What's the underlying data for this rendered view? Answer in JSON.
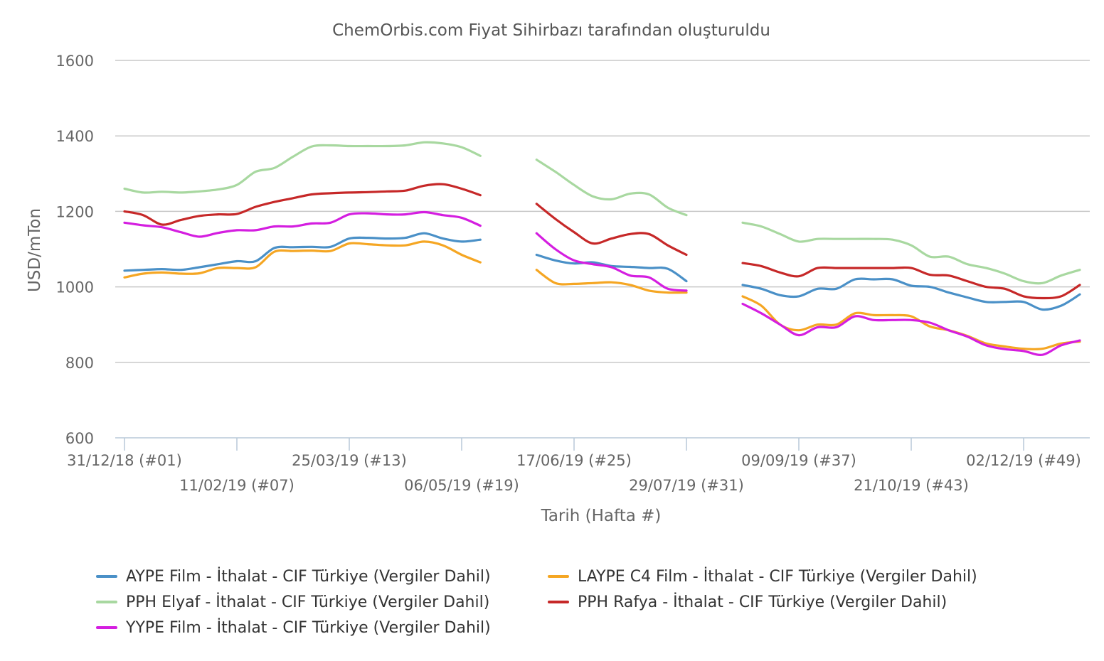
{
  "chart_data": {
    "type": "line",
    "title": "ChemOrbis.com Fiyat Sihirbazı tarafından oluşturuldu",
    "xlabel": "Tarih (Hafta #)",
    "ylabel": "USD/mTon",
    "ylim": [
      600,
      1600
    ],
    "yticks": [
      600,
      800,
      1000,
      1200,
      1400,
      1600
    ],
    "grid": true,
    "legend_position": "bottom",
    "x_week_range": [
      1,
      52
    ],
    "x_tick_labels": [
      {
        "week": 1,
        "label": "31/12/18 (#01)",
        "row": 1
      },
      {
        "week": 7,
        "label": "11/02/19 (#07)",
        "row": 2
      },
      {
        "week": 13,
        "label": "25/03/19 (#13)",
        "row": 1
      },
      {
        "week": 19,
        "label": "06/05/19 (#19)",
        "row": 2
      },
      {
        "week": 25,
        "label": "17/06/19 (#25)",
        "row": 1
      },
      {
        "week": 31,
        "label": "29/07/19 (#31)",
        "row": 2
      },
      {
        "week": 37,
        "label": "09/09/19 (#37)",
        "row": 1
      },
      {
        "week": 43,
        "label": "21/10/19 (#43)",
        "row": 2
      },
      {
        "week": 49,
        "label": "02/12/19 (#49)",
        "row": 1
      }
    ],
    "series": [
      {
        "name": "AYPE Film - İthalat - CIF Türkiye (Vergiler Dahil)",
        "color": "#4a90c7",
        "values": [
          1043,
          1045,
          1047,
          1045,
          1052,
          1060,
          1068,
          1068,
          1103,
          1105,
          1106,
          1106,
          1128,
          1130,
          1128,
          1130,
          1142,
          1128,
          1120,
          1125,
          null,
          null,
          1085,
          1070,
          1062,
          1065,
          1055,
          1053,
          1050,
          1048,
          1015,
          null,
          null,
          1005,
          995,
          978,
          975,
          995,
          995,
          1020,
          1020,
          1020,
          1003,
          1000,
          985,
          972,
          960,
          960,
          960,
          940,
          950,
          980
        ]
      },
      {
        "name": "LAYPE C4 Film - İthalat - CIF Türkiye (Vergiler Dahil)",
        "color": "#f5a623",
        "values": [
          1025,
          1035,
          1038,
          1035,
          1036,
          1050,
          1050,
          1052,
          1093,
          1095,
          1096,
          1095,
          1115,
          1113,
          1110,
          1110,
          1120,
          1110,
          1085,
          1065,
          null,
          null,
          1045,
          1010,
          1008,
          1010,
          1012,
          1005,
          990,
          985,
          985,
          null,
          null,
          975,
          950,
          900,
          885,
          900,
          900,
          930,
          925,
          925,
          922,
          895,
          885,
          870,
          850,
          842,
          836,
          836,
          850,
          855
        ]
      },
      {
        "name": "PPH Elyaf - İthalat - CIF Türkiye (Vergiler Dahil)",
        "color": "#a8d8a0",
        "values": [
          1260,
          1250,
          1252,
          1250,
          1253,
          1258,
          1270,
          1305,
          1315,
          1345,
          1372,
          1375,
          1373,
          1373,
          1373,
          1375,
          1383,
          1380,
          1370,
          1347,
          null,
          null,
          1337,
          1305,
          1270,
          1240,
          1232,
          1247,
          1245,
          1210,
          1190,
          null,
          null,
          1170,
          1160,
          1140,
          1120,
          1127,
          1127,
          1127,
          1127,
          1125,
          1110,
          1080,
          1080,
          1060,
          1050,
          1035,
          1015,
          1010,
          1030,
          1045
        ]
      },
      {
        "name": "PPH Rafya - İthalat - CIF Türkiye (Vergiler Dahil)",
        "color": "#c62828",
        "values": [
          1200,
          1190,
          1165,
          1177,
          1188,
          1192,
          1193,
          1212,
          1225,
          1235,
          1245,
          1248,
          1250,
          1251,
          1253,
          1255,
          1268,
          1272,
          1260,
          1243,
          null,
          null,
          1220,
          1180,
          1145,
          1115,
          1128,
          1140,
          1140,
          1110,
          1085,
          null,
          null,
          1063,
          1055,
          1038,
          1028,
          1050,
          1050,
          1050,
          1050,
          1050,
          1050,
          1032,
          1030,
          1015,
          1000,
          995,
          975,
          970,
          975,
          1005
        ]
      },
      {
        "name": "YYPE Film - İthalat - CIF Türkiye (Vergiler Dahil)",
        "color": "#d41ee0",
        "values": [
          1170,
          1163,
          1158,
          1145,
          1133,
          1143,
          1150,
          1150,
          1160,
          1160,
          1168,
          1170,
          1192,
          1195,
          1192,
          1192,
          1198,
          1190,
          1183,
          1162,
          null,
          null,
          1142,
          1100,
          1070,
          1060,
          1052,
          1030,
          1025,
          995,
          990,
          null,
          null,
          955,
          930,
          900,
          872,
          893,
          893,
          922,
          912,
          912,
          912,
          905,
          885,
          868,
          845,
          835,
          830,
          820,
          845,
          858
        ]
      }
    ]
  }
}
